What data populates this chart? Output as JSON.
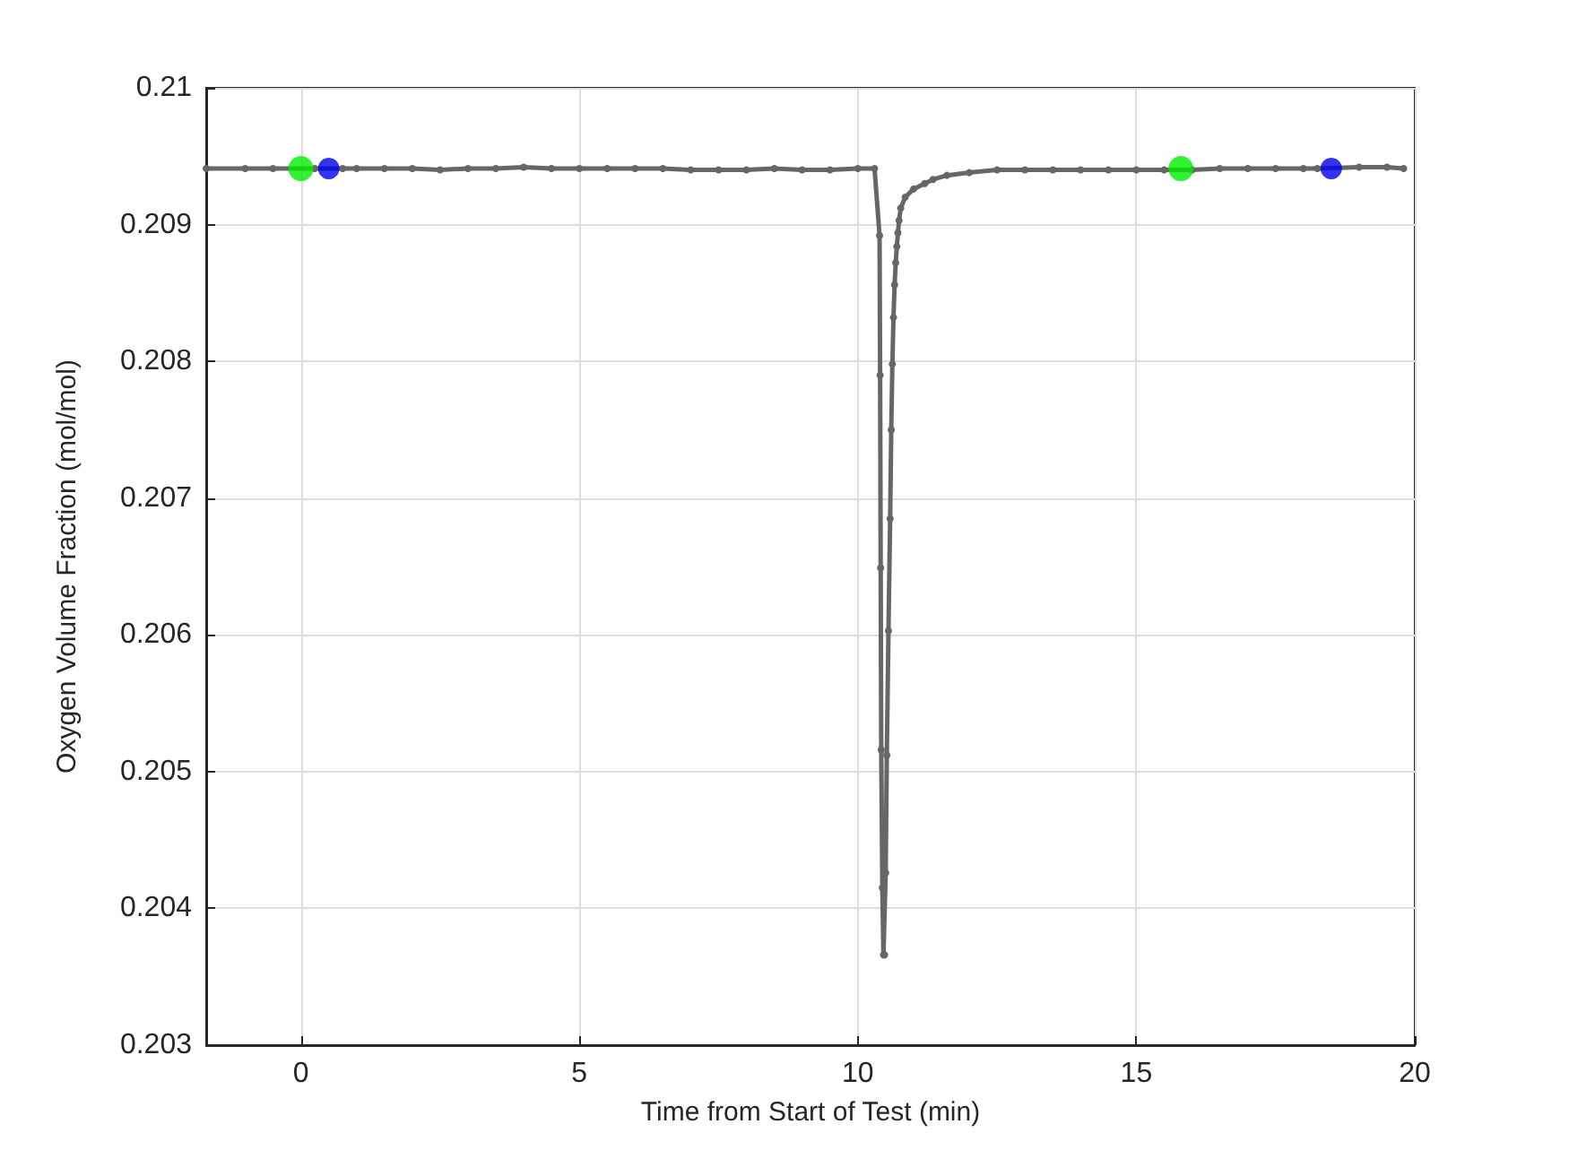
{
  "chart_data": {
    "type": "line",
    "xlabel": "Time from Start of Test (min)",
    "ylabel": "Oxygen Volume Fraction (mol/mol)",
    "xlim": [
      -1.7,
      20
    ],
    "xticks": [
      0,
      5,
      10,
      15,
      20
    ],
    "ylim": [
      0.203,
      0.21
    ],
    "yticks": [
      0.203,
      0.204,
      0.205,
      0.206,
      0.207,
      0.208,
      0.209,
      0.21
    ],
    "grid": true,
    "marker": "circle",
    "line_style": "solid",
    "series": [
      {
        "color": "#666666",
        "x": [
          -1.7,
          -1,
          -0.5,
          0.25,
          0.75,
          1,
          1.5,
          2,
          2.5,
          3,
          3.5,
          4,
          4.5,
          5,
          5.5,
          6,
          6.5,
          7,
          7.5,
          8,
          8.5,
          9,
          9.5,
          10,
          10.3,
          10.39,
          10.4,
          10.41,
          10.42,
          10.44,
          10.46,
          10.48,
          10.5,
          10.52,
          10.55,
          10.58,
          10.6,
          10.62,
          10.64,
          10.66,
          10.68,
          10.7,
          10.72,
          10.74,
          10.77,
          10.85,
          11,
          11.2,
          11.35,
          11.6,
          12,
          12.5,
          13,
          13.5,
          14,
          14.5,
          15,
          15.5,
          16,
          16.5,
          17,
          17.5,
          18,
          18.25,
          19,
          19.5,
          19.8
        ],
        "values": [
          0.20941,
          0.20941,
          0.20941,
          0.20941,
          0.20941,
          0.20941,
          0.20941,
          0.20941,
          0.2094,
          0.20941,
          0.20941,
          0.20942,
          0.20941,
          0.20941,
          0.20941,
          0.20941,
          0.20941,
          0.2094,
          0.2094,
          0.2094,
          0.20941,
          0.2094,
          0.2094,
          0.20941,
          0.20941,
          0.20892,
          0.2079,
          0.20649,
          0.20516,
          0.20415,
          0.20366,
          0.20366,
          0.20426,
          0.20512,
          0.20603,
          0.20685,
          0.2075,
          0.20798,
          0.20832,
          0.20856,
          0.20872,
          0.20884,
          0.20894,
          0.20903,
          0.20912,
          0.2092,
          0.20926,
          0.2093,
          0.20933,
          0.20936,
          0.20938,
          0.2094,
          0.2094,
          0.2094,
          0.2094,
          0.2094,
          0.2094,
          0.2094,
          0.2094,
          0.20941,
          0.20941,
          0.20941,
          0.20941,
          0.20941,
          0.20942,
          0.20942,
          0.20941
        ]
      },
      {
        "type": "scatter",
        "color": "#00ee00",
        "x": [
          0,
          15.8
        ],
        "values": [
          0.20941,
          0.20941
        ]
      },
      {
        "type": "scatter",
        "color": "#0000ee",
        "x": [
          0.5,
          18.5
        ],
        "values": [
          0.20941,
          0.20941
        ]
      }
    ]
  }
}
